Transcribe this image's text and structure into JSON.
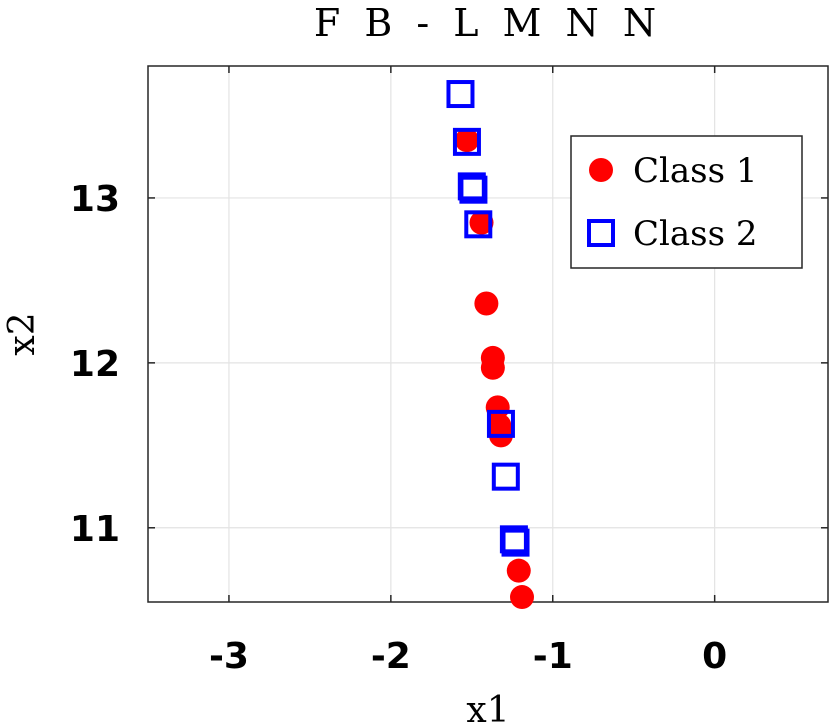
{
  "chart_data": {
    "type": "scatter",
    "title": "F B - L M N N",
    "xlabel": "x1",
    "ylabel": "x2",
    "xlim": [
      -3.5,
      0.7
    ],
    "ylim": [
      10.55,
      13.8
    ],
    "xticks": [
      -3,
      -2,
      -1,
      0
    ],
    "yticks": [
      11,
      12,
      13
    ],
    "xtick_labels": [
      "-3",
      "-2",
      "-1",
      "0"
    ],
    "ytick_labels": [
      "11",
      "12",
      "13"
    ],
    "grid": true,
    "legend_location": "top-right",
    "series": [
      {
        "name": "Class 1",
        "marker": "circle",
        "color": "#ff0000",
        "x": [
          -1.53,
          -1.44,
          -1.41,
          -1.37,
          -1.37,
          -1.34,
          -1.33,
          -1.32,
          -1.21,
          -1.19
        ],
        "y": [
          13.35,
          12.85,
          12.36,
          12.03,
          11.97,
          11.73,
          11.62,
          11.56,
          10.74,
          10.58
        ]
      },
      {
        "name": "Class 2",
        "marker": "square",
        "color": "#0000ff",
        "x": [
          -1.57,
          -1.53,
          -1.5,
          -1.49,
          -1.46,
          -1.32,
          -1.29,
          -1.24,
          -1.23
        ],
        "y": [
          13.63,
          13.34,
          13.07,
          13.05,
          12.84,
          11.63,
          11.31,
          10.93,
          10.91
        ]
      }
    ]
  }
}
